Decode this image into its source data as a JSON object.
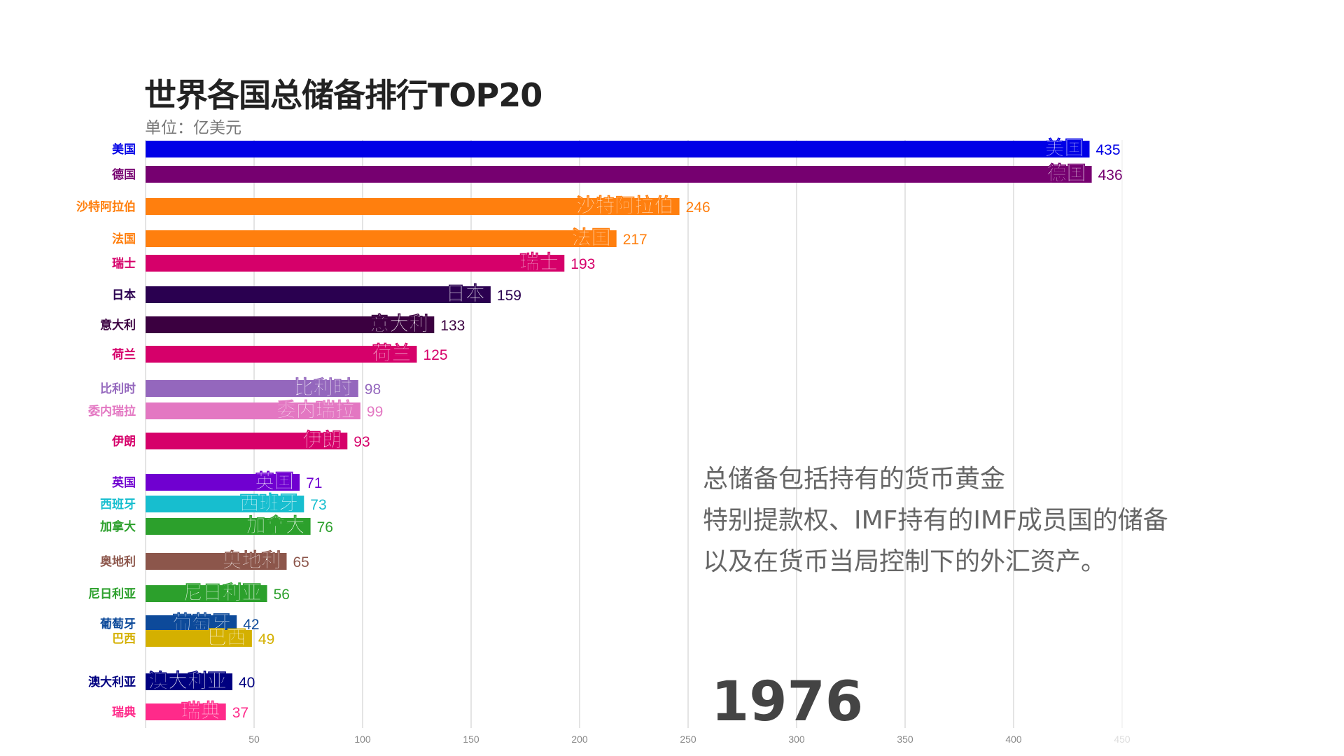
{
  "chart_data": {
    "type": "bar",
    "orientation": "horizontal",
    "title": "世界各国总储备排行TOP20",
    "subtitle": "单位：亿美元",
    "xlim": [
      0,
      450
    ],
    "xticks": [
      50,
      100,
      150,
      200,
      250,
      300,
      350,
      400,
      450
    ],
    "grid": true,
    "categories": [
      "美国",
      "德国",
      "沙特阿拉伯",
      "法国",
      "瑞士",
      "日本",
      "意大利",
      "荷兰",
      "比利时",
      "委内瑞拉",
      "伊朗",
      "英国",
      "西班牙",
      "加拿大",
      "奥地利",
      "尼日利亚",
      "葡萄牙",
      "巴西",
      "澳大利亚",
      "瑞典"
    ],
    "values": [
      435,
      436,
      246,
      217,
      193,
      159,
      133,
      125,
      98,
      99,
      93,
      71,
      73,
      76,
      65,
      56,
      42,
      49,
      40,
      37
    ],
    "colors": [
      "#0000e6",
      "#760070",
      "#ff7f0e",
      "#ff7f0e",
      "#d6006a",
      "#2a0050",
      "#3b0040",
      "#d6006a",
      "#9467bd",
      "#e377c2",
      "#d6006a",
      "#7000d0",
      "#17becf",
      "#2ca02c",
      "#8c564b",
      "#2ca02c",
      "#0d4a9a",
      "#d4b000",
      "#000080",
      "#ff2a8a"
    ],
    "year": "1976",
    "annotation": [
      "总储备包括持有的货币黄金",
      "特别提款权、IMF持有的IMF成员国的储备",
      "以及在货币当局控制下的外汇资产。"
    ]
  }
}
